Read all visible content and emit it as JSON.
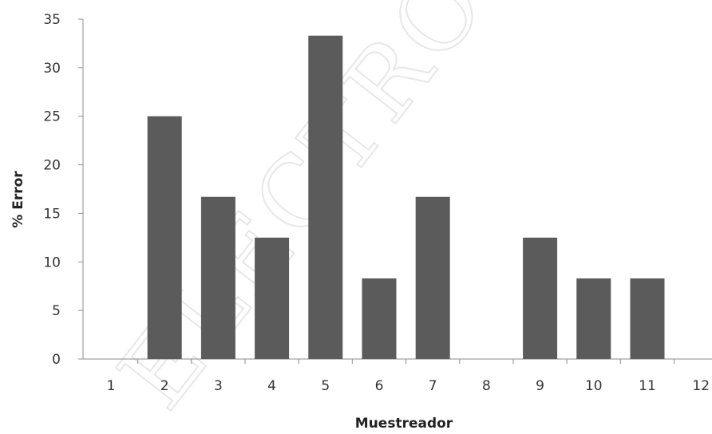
{
  "chart_data": {
    "type": "bar",
    "title": "",
    "xlabel": "Muestreador",
    "ylabel": "% Error",
    "categories": [
      "1",
      "2",
      "3",
      "4",
      "5",
      "6",
      "7",
      "8",
      "9",
      "10",
      "11",
      "12"
    ],
    "values": [
      0,
      25,
      16.7,
      12.5,
      33.3,
      8.3,
      16.7,
      0,
      12.5,
      8.3,
      8.3,
      0
    ],
    "ylim": [
      0,
      35
    ],
    "yticks": [
      "0",
      "5",
      "10",
      "15",
      "20",
      "25",
      "30",
      "35"
    ],
    "grid": false,
    "legend": "none",
    "bar_color": "#5b5b5b"
  },
  "watermark_text": "ELECTRÓNICA"
}
